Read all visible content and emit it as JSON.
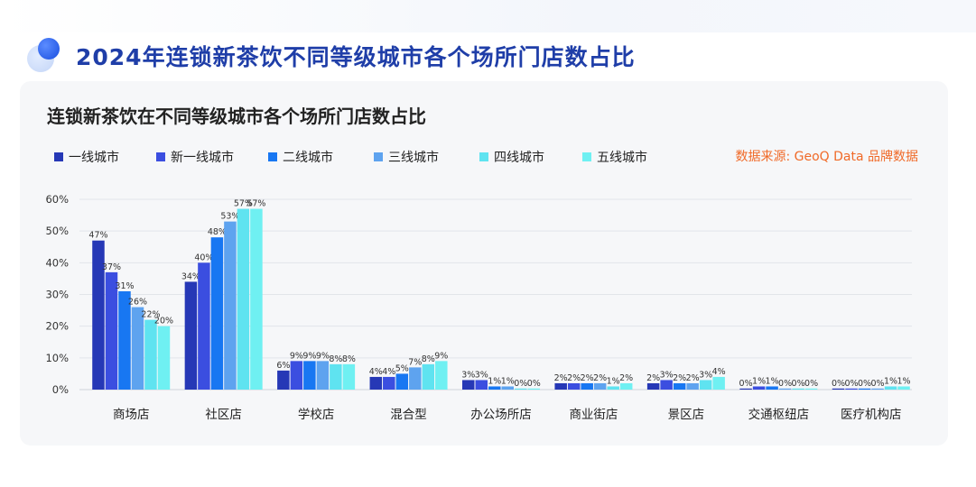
{
  "page_title": "2024年连锁新茶饮不同等级城市各个场所门店数占比",
  "source_text": "数据来源: GeoQ Data 品牌数据",
  "chart_data": {
    "type": "bar",
    "title": "连锁新茶饮在不同等级城市各个场所门店数占比",
    "ylim": [
      0,
      60
    ],
    "yticks": [
      "0%",
      "10%",
      "20%",
      "30%",
      "40%",
      "50%",
      "60%"
    ],
    "ytick_values": [
      0,
      10,
      20,
      30,
      40,
      50,
      60
    ],
    "grid": true,
    "legend_position": "top-left",
    "categories": [
      "商场店",
      "社区店",
      "学校店",
      "混合型",
      "办公场所店",
      "商业街店",
      "景区店",
      "交通枢纽店",
      "医疗机构店"
    ],
    "series": [
      {
        "name": "一线城市",
        "color": "#2638b6",
        "values": [
          47,
          34,
          6,
          4,
          3,
          2,
          2,
          0,
          0
        ],
        "labels": [
          "47%",
          "34%",
          "6%",
          "4%",
          "3%",
          "2%",
          "2%",
          "0%",
          "0%"
        ]
      },
      {
        "name": "新一线城市",
        "color": "#3b4ee0",
        "values": [
          37,
          40,
          9,
          4,
          3,
          2,
          3,
          1,
          0
        ],
        "labels": [
          "37%",
          "40%",
          "9%",
          "4%",
          "3%",
          "2%",
          "3%",
          "1%",
          "0%"
        ]
      },
      {
        "name": "二线城市",
        "color": "#1877f2",
        "values": [
          31,
          48,
          9,
          5,
          1,
          2,
          2,
          1,
          0
        ],
        "labels": [
          "31%",
          "48%",
          "9%",
          "5%",
          "1%",
          "2%",
          "2%",
          "1%",
          "0%"
        ]
      },
      {
        "name": "三线城市",
        "color": "#5ea3ef",
        "values": [
          26,
          53,
          9,
          7,
          1,
          2,
          2,
          0,
          0
        ],
        "labels": [
          "26%",
          "53%",
          "9%",
          "7%",
          "1%",
          "2%",
          "2%",
          "0%",
          "0%"
        ]
      },
      {
        "name": "四线城市",
        "color": "#5fe3f0",
        "values": [
          22,
          57,
          8,
          8,
          0,
          1,
          3,
          0,
          1
        ],
        "labels": [
          "22%",
          "57%",
          "8%",
          "8%",
          "0%",
          "1%",
          "3%",
          "0%",
          "1%"
        ]
      },
      {
        "name": "五线城市",
        "color": "#6ff0f2",
        "values": [
          20,
          57,
          8,
          9,
          0,
          2,
          4,
          0,
          1
        ],
        "labels": [
          "20%",
          "57%",
          "8%",
          "9%",
          "0%",
          "2%",
          "4%",
          "0%",
          "1%"
        ]
      }
    ]
  }
}
